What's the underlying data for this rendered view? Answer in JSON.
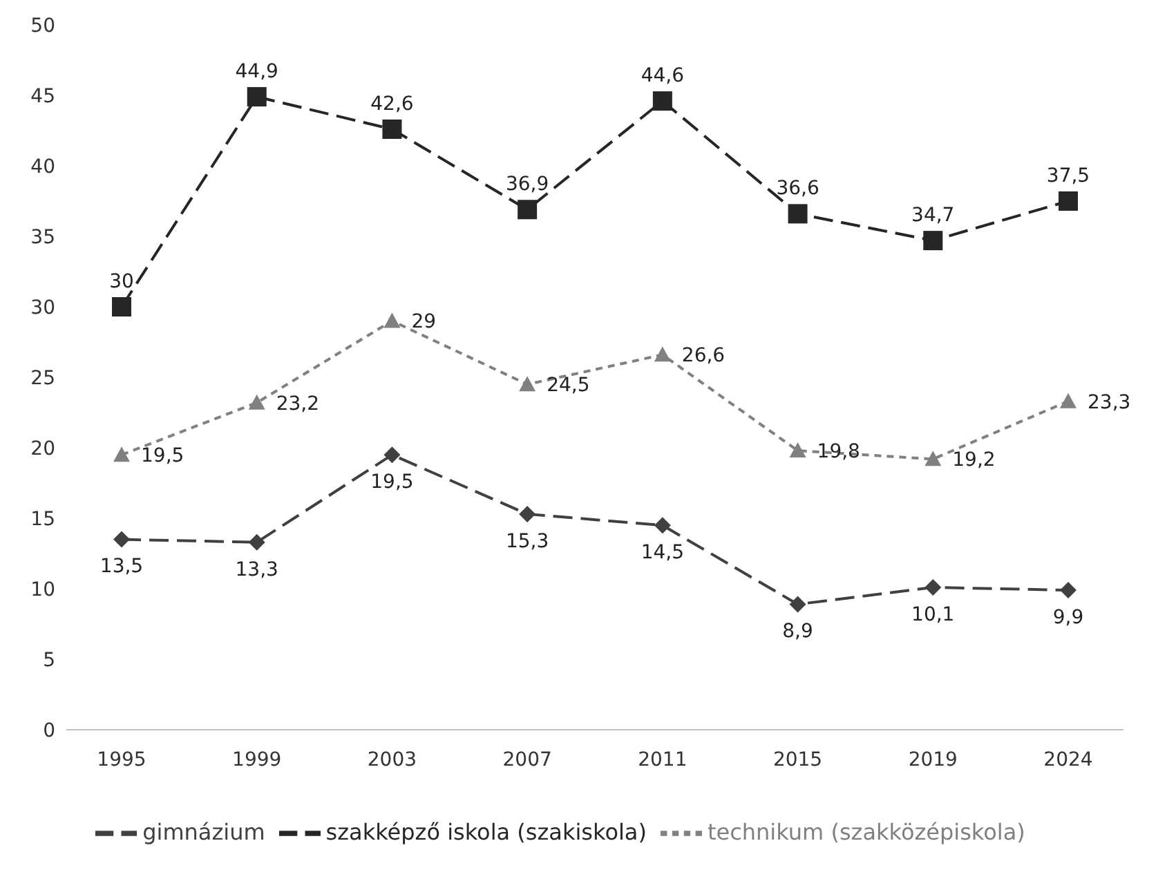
{
  "chart_data": {
    "type": "line",
    "categories": [
      "1995",
      "1999",
      "2003",
      "2007",
      "2011",
      "2015",
      "2019",
      "2024"
    ],
    "series": [
      {
        "name": "gimnázium",
        "color": "#404040",
        "marker": "diamond",
        "line_style": "dashed",
        "values": [
          13.5,
          13.3,
          19.5,
          15.3,
          14.5,
          8.9,
          10.1,
          9.9
        ],
        "value_labels": [
          "13,5",
          "13,3",
          "19,5",
          "15,3",
          "14,5",
          "8,9",
          "10,1",
          "9,9"
        ]
      },
      {
        "name": "technikum (szakközépiskola)",
        "color": "#808080",
        "marker": "triangle",
        "line_style": "dotted",
        "values": [
          19.5,
          23.2,
          29,
          24.5,
          26.6,
          19.8,
          19.2,
          23.3
        ],
        "value_labels": [
          "19,5",
          "23,2",
          "29",
          "24,5",
          "26,6",
          "19,8",
          "19,2",
          "23,3"
        ]
      },
      {
        "name": "szakképző iskola (szakiskola)",
        "color": "#262626",
        "marker": "square",
        "line_style": "dashed",
        "values": [
          30,
          44.9,
          42.6,
          36.9,
          44.6,
          36.6,
          34.7,
          37.5
        ],
        "value_labels": [
          "30",
          "44,9",
          "42,6",
          "36,9",
          "44,6",
          "36,6",
          "34,7",
          "37,5"
        ]
      }
    ],
    "ylim": [
      0,
      50
    ],
    "yticks": [
      0,
      5,
      10,
      15,
      20,
      25,
      30,
      35,
      40,
      45,
      50
    ],
    "grid": false,
    "legend": "bottom"
  }
}
